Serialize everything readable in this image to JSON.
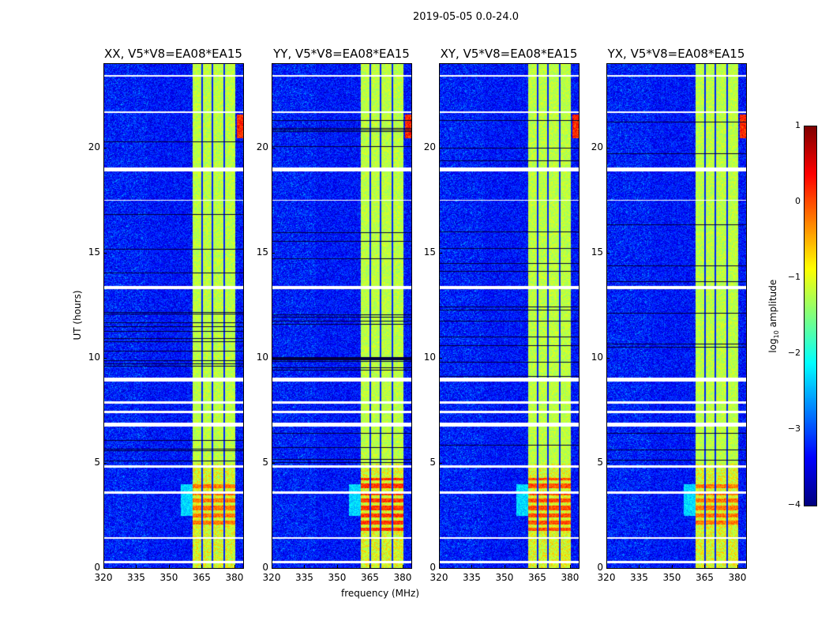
{
  "chart_data": {
    "type": "heatmap",
    "title": "2019-05-05 0.0-24.0",
    "xlabel": "frequency (MHz)",
    "ylabel": "UT (hours)",
    "xlim": [
      320,
      384
    ],
    "ylim": [
      0,
      24
    ],
    "xticks": [
      320,
      335,
      350,
      365,
      380
    ],
    "yticks": [
      0,
      5,
      10,
      15,
      20
    ],
    "panels": [
      {
        "title": "XX, V5*V8=EA08*EA15",
        "strong_rfi_hours": [
          2.0,
          4.0
        ],
        "strong_rfi_level": -0.2
      },
      {
        "title": "YY, V5*V8=EA08*EA15",
        "strong_rfi_hours": [
          1.8,
          4.3
        ],
        "strong_rfi_level": 0.1
      },
      {
        "title": "XY, V5*V8=EA08*EA15",
        "strong_rfi_hours": [
          1.8,
          4.3
        ],
        "strong_rfi_level": 0.0
      },
      {
        "title": "YX, V5*V8=EA08*EA15",
        "strong_rfi_hours": [
          2.0,
          4.0
        ],
        "strong_rfi_level": -0.2
      }
    ],
    "rfi_band_mhz": [
      360.5,
      380
    ],
    "rfi_band_gaps_mhz": [
      365,
      369.5,
      375
    ],
    "flagged_hours": [
      [
        0.25,
        0.35
      ],
      [
        1.4,
        1.5
      ],
      [
        3.55,
        3.65
      ],
      [
        4.8,
        4.9
      ],
      [
        6.75,
        6.95
      ],
      [
        7.4,
        7.5
      ],
      [
        7.85,
        7.95
      ],
      [
        8.9,
        9.1
      ],
      [
        13.3,
        13.45
      ],
      [
        17.5,
        17.55
      ],
      [
        18.9,
        19.1
      ],
      [
        21.7,
        21.75
      ],
      [
        23.4,
        23.5
      ]
    ],
    "colorbar": {
      "label": "log10 amplitude",
      "label_main": "log",
      "label_sub": "10",
      "label_rest": " amplitude",
      "range": [
        -4,
        1
      ],
      "ticks": [
        "1",
        "0",
        "−1",
        "−2",
        "−3",
        "−4"
      ],
      "tick_values": [
        1,
        0,
        -1,
        -2,
        -3,
        -4
      ]
    }
  }
}
